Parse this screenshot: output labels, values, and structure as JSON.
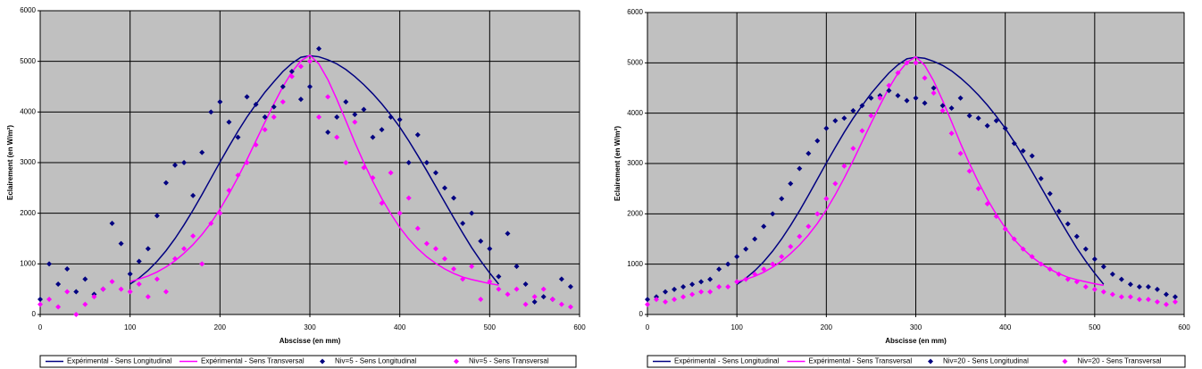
{
  "chart_data": [
    {
      "type": "scatter",
      "x_label": "Abscisse (en mm)",
      "y_label": "Eclairement (en W/m²)",
      "xlim": [
        0,
        600
      ],
      "xticks": [
        0,
        100,
        200,
        300,
        400,
        500,
        600
      ],
      "ylim": [
        0,
        6000
      ],
      "yticks": [
        0,
        1000,
        2000,
        3000,
        4000,
        5000,
        6000
      ],
      "grid": true,
      "legend": "bottom",
      "series": [
        {
          "name": "Expérimental - Sens Longitudinal",
          "color": "#000080",
          "mode": "line",
          "x": [
            100,
            110,
            120,
            130,
            140,
            150,
            160,
            170,
            180,
            190,
            200,
            210,
            220,
            230,
            240,
            250,
            260,
            270,
            280,
            290,
            300,
            310,
            320,
            330,
            340,
            350,
            360,
            370,
            380,
            390,
            400,
            410,
            420,
            430,
            440,
            450,
            460,
            470,
            480,
            490,
            500,
            510
          ],
          "values": [
            600,
            720,
            870,
            1050,
            1260,
            1500,
            1770,
            2060,
            2370,
            2690,
            3010,
            3320,
            3620,
            3900,
            4150,
            4390,
            4600,
            4800,
            4960,
            5080,
            5110,
            5090,
            5030,
            4950,
            4840,
            4700,
            4540,
            4360,
            4160,
            3940,
            3700,
            3430,
            3140,
            2840,
            2530,
            2220,
            1910,
            1610,
            1320,
            1060,
            820,
            600
          ]
        },
        {
          "name": "Expérimental - Sens Transversal",
          "color": "#ff00ff",
          "mode": "line",
          "x": [
            100,
            110,
            120,
            130,
            140,
            150,
            160,
            170,
            180,
            190,
            200,
            210,
            220,
            230,
            240,
            250,
            260,
            270,
            280,
            290,
            300,
            310,
            320,
            330,
            340,
            350,
            360,
            370,
            380,
            390,
            400,
            410,
            420,
            430,
            440,
            450,
            460,
            470,
            480,
            490,
            500,
            510
          ],
          "values": [
            650,
            700,
            760,
            840,
            940,
            1060,
            1210,
            1380,
            1580,
            1810,
            2080,
            2380,
            2710,
            3060,
            3430,
            3800,
            4160,
            4500,
            4790,
            5010,
            5120,
            4950,
            4640,
            4250,
            3830,
            3400,
            3000,
            2630,
            2290,
            1990,
            1720,
            1490,
            1300,
            1140,
            1010,
            900,
            810,
            740,
            690,
            650,
            610,
            580
          ]
        },
        {
          "name": "Niv=5 - Sens Longitudinal",
          "color": "#000080",
          "mode": "markers",
          "x": [
            0,
            10,
            20,
            30,
            40,
            50,
            60,
            70,
            80,
            90,
            100,
            110,
            120,
            130,
            140,
            150,
            160,
            170,
            180,
            190,
            200,
            210,
            220,
            230,
            240,
            250,
            260,
            270,
            280,
            290,
            300,
            310,
            320,
            330,
            340,
            350,
            360,
            370,
            380,
            390,
            400,
            410,
            420,
            430,
            440,
            450,
            460,
            470,
            480,
            490,
            500,
            510,
            520,
            530,
            540,
            550,
            560,
            570,
            580,
            590
          ],
          "values": [
            300,
            1000,
            600,
            900,
            450,
            700,
            400,
            500,
            1800,
            1400,
            800,
            1050,
            1300,
            1950,
            2600,
            2950,
            3000,
            2350,
            3200,
            4000,
            4200,
            3800,
            3500,
            4300,
            4150,
            3900,
            4100,
            4500,
            4800,
            4250,
            4500,
            5250,
            3600,
            3900,
            4200,
            3950,
            4050,
            3500,
            3650,
            3900,
            3850,
            3000,
            3550,
            3000,
            2800,
            2500,
            2300,
            1800,
            2000,
            1450,
            1300,
            750,
            1600,
            950,
            600,
            250,
            350,
            300,
            700,
            550
          ]
        },
        {
          "name": "Niv=5 - Sens Transversal",
          "color": "#ff00ff",
          "mode": "markers",
          "x": [
            0,
            10,
            20,
            30,
            40,
            50,
            60,
            70,
            80,
            90,
            100,
            110,
            120,
            130,
            140,
            150,
            160,
            170,
            180,
            190,
            200,
            210,
            220,
            230,
            240,
            250,
            260,
            270,
            280,
            290,
            300,
            310,
            320,
            330,
            340,
            350,
            360,
            370,
            380,
            390,
            400,
            410,
            420,
            430,
            440,
            450,
            460,
            470,
            480,
            490,
            500,
            510,
            520,
            530,
            540,
            550,
            560,
            570,
            580,
            590
          ],
          "values": [
            200,
            300,
            150,
            450,
            0,
            200,
            350,
            500,
            650,
            500,
            450,
            600,
            350,
            700,
            450,
            1100,
            1300,
            1550,
            1000,
            1800,
            2000,
            2450,
            2750,
            3000,
            3350,
            3650,
            3900,
            4200,
            4700,
            4900,
            5000,
            3900,
            4300,
            3500,
            3000,
            3800,
            2900,
            2700,
            2200,
            2800,
            2000,
            2300,
            1700,
            1400,
            1300,
            1100,
            900,
            700,
            950,
            300,
            650,
            500,
            400,
            500,
            200,
            350,
            500,
            300,
            200,
            150
          ]
        }
      ]
    },
    {
      "type": "scatter",
      "x_label": "Abscisse (en mm)",
      "y_label": "Eclairement (en W/m²)",
      "xlim": [
        0,
        600
      ],
      "xticks": [
        0,
        100,
        200,
        300,
        400,
        500,
        600
      ],
      "ylim": [
        0,
        6000
      ],
      "yticks": [
        0,
        1000,
        2000,
        3000,
        4000,
        5000,
        6000
      ],
      "grid": true,
      "legend": "bottom",
      "series": [
        {
          "name": "Expérimental - Sens Longitudinal",
          "color": "#000080",
          "mode": "line",
          "x": [
            100,
            110,
            120,
            130,
            140,
            150,
            160,
            170,
            180,
            190,
            200,
            210,
            220,
            230,
            240,
            250,
            260,
            270,
            280,
            290,
            300,
            310,
            320,
            330,
            340,
            350,
            360,
            370,
            380,
            390,
            400,
            410,
            420,
            430,
            440,
            450,
            460,
            470,
            480,
            490,
            500,
            510
          ],
          "values": [
            600,
            720,
            870,
            1050,
            1260,
            1500,
            1770,
            2060,
            2370,
            2690,
            3010,
            3320,
            3620,
            3900,
            4150,
            4390,
            4600,
            4800,
            4960,
            5080,
            5110,
            5090,
            5030,
            4950,
            4840,
            4700,
            4540,
            4360,
            4160,
            3940,
            3700,
            3430,
            3140,
            2840,
            2530,
            2220,
            1910,
            1610,
            1320,
            1060,
            820,
            600
          ]
        },
        {
          "name": "Expérimental - Sens Transversal",
          "color": "#ff00ff",
          "mode": "line",
          "x": [
            100,
            110,
            120,
            130,
            140,
            150,
            160,
            170,
            180,
            190,
            200,
            210,
            220,
            230,
            240,
            250,
            260,
            270,
            280,
            290,
            300,
            310,
            320,
            330,
            340,
            350,
            360,
            370,
            380,
            390,
            400,
            410,
            420,
            430,
            440,
            450,
            460,
            470,
            480,
            490,
            500,
            510
          ],
          "values": [
            650,
            700,
            760,
            840,
            940,
            1060,
            1210,
            1380,
            1580,
            1810,
            2080,
            2380,
            2710,
            3060,
            3430,
            3800,
            4160,
            4500,
            4790,
            5010,
            5120,
            4950,
            4640,
            4250,
            3830,
            3400,
            3000,
            2630,
            2290,
            1990,
            1720,
            1490,
            1300,
            1140,
            1010,
            900,
            810,
            740,
            690,
            650,
            610,
            580
          ]
        },
        {
          "name": "Niv=20 - Sens Longitudinal",
          "color": "#000080",
          "mode": "markers",
          "x": [
            0,
            10,
            20,
            30,
            40,
            50,
            60,
            70,
            80,
            90,
            100,
            110,
            120,
            130,
            140,
            150,
            160,
            170,
            180,
            190,
            200,
            210,
            220,
            230,
            240,
            250,
            260,
            270,
            280,
            290,
            300,
            310,
            320,
            330,
            340,
            350,
            360,
            370,
            380,
            390,
            400,
            410,
            420,
            430,
            440,
            450,
            460,
            470,
            480,
            490,
            500,
            510,
            520,
            530,
            540,
            550,
            560,
            570,
            580,
            590
          ],
          "values": [
            300,
            350,
            450,
            500,
            550,
            600,
            650,
            700,
            900,
            1000,
            1150,
            1300,
            1500,
            1750,
            2000,
            2300,
            2600,
            2900,
            3200,
            3450,
            3700,
            3850,
            3900,
            4050,
            4150,
            4300,
            4350,
            4450,
            4350,
            4250,
            4300,
            4200,
            4500,
            4150,
            4100,
            4300,
            3950,
            3900,
            3750,
            3850,
            3700,
            3400,
            3250,
            3150,
            2700,
            2400,
            2050,
            1800,
            1550,
            1300,
            1100,
            950,
            800,
            700,
            600,
            550,
            550,
            500,
            400,
            350
          ]
        },
        {
          "name": "Niv=20 - Sens Transversal",
          "color": "#ff00ff",
          "mode": "markers",
          "x": [
            0,
            10,
            20,
            30,
            40,
            50,
            60,
            70,
            80,
            90,
            100,
            110,
            120,
            130,
            140,
            150,
            160,
            170,
            180,
            190,
            200,
            210,
            220,
            230,
            240,
            250,
            260,
            270,
            280,
            290,
            300,
            310,
            320,
            330,
            340,
            350,
            360,
            370,
            380,
            390,
            400,
            410,
            420,
            430,
            440,
            450,
            460,
            470,
            480,
            490,
            500,
            510,
            520,
            530,
            540,
            550,
            560,
            570,
            580,
            590
          ],
          "values": [
            200,
            300,
            250,
            300,
            350,
            400,
            450,
            450,
            550,
            550,
            650,
            700,
            800,
            900,
            1000,
            1150,
            1350,
            1550,
            1750,
            2000,
            2300,
            2600,
            2950,
            3300,
            3650,
            3950,
            4300,
            4550,
            4800,
            5000,
            5000,
            4700,
            4400,
            4050,
            3600,
            3200,
            2850,
            2500,
            2200,
            1950,
            1700,
            1500,
            1300,
            1150,
            1000,
            900,
            800,
            700,
            650,
            550,
            500,
            450,
            400,
            350,
            350,
            300,
            300,
            250,
            200,
            250
          ]
        }
      ]
    }
  ]
}
